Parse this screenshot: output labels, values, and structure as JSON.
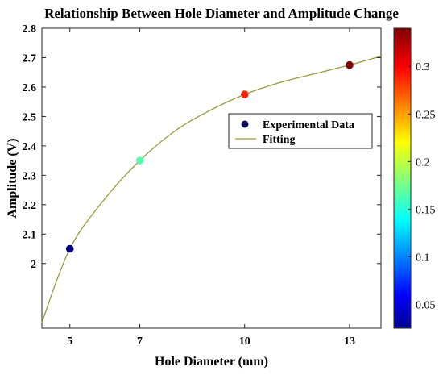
{
  "chart_data": {
    "type": "scatter",
    "title": "Relationship Between Hole Diameter and Amplitude Change",
    "xlabel": "Hole Diameter (mm)",
    "ylabel": "Amplitude (V)",
    "xlim": [
      4.2,
      13.9
    ],
    "ylim": [
      1.78,
      2.8
    ],
    "xticks": [
      5,
      7,
      10,
      13
    ],
    "yticks": [
      2.0,
      2.1,
      2.2,
      2.3,
      2.4,
      2.5,
      2.6,
      2.7,
      2.8
    ],
    "ytick_labels": [
      "2",
      "2.1",
      "2.2",
      "2.3",
      "2.4",
      "2.5",
      "2.6",
      "2.7",
      "2.8"
    ],
    "grid": false,
    "legend_position": "center-right",
    "series": [
      {
        "name": "Experimental Data",
        "kind": "scatter",
        "x": [
          5,
          7,
          10,
          13
        ],
        "y": [
          2.05,
          2.35,
          2.575,
          2.675
        ],
        "color_values": [
          0.02,
          0.17,
          0.29,
          0.34
        ]
      },
      {
        "name": "Fitting",
        "kind": "line",
        "color": "#9a9a3c",
        "x": [
          4.2,
          5,
          6,
          7,
          8,
          9,
          10,
          11,
          12,
          13,
          13.9
        ],
        "y": [
          1.8,
          2.05,
          2.22,
          2.35,
          2.45,
          2.52,
          2.575,
          2.615,
          2.645,
          2.675,
          2.705
        ]
      }
    ],
    "colorbar": {
      "colormap": "jet",
      "range": [
        0.025,
        0.34
      ],
      "ticks": [
        0.05,
        0.1,
        0.15,
        0.2,
        0.25,
        0.3
      ],
      "tick_labels": [
        "0.05",
        "0.1",
        "0.15",
        "0.2",
        "0.25",
        "0.3"
      ]
    }
  }
}
